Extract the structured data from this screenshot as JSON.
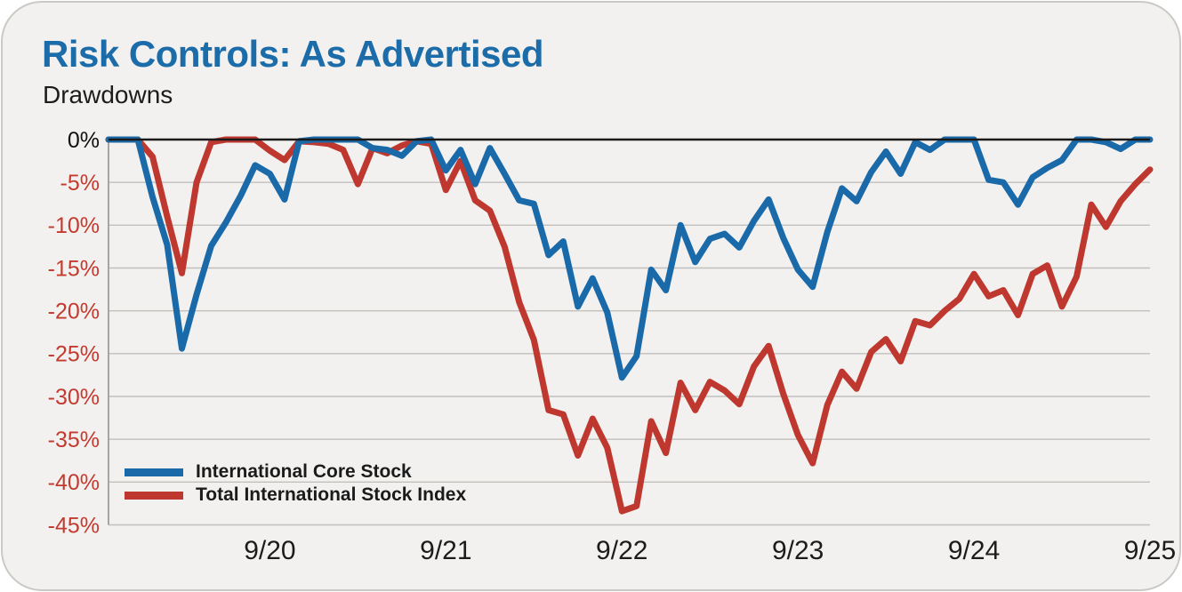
{
  "header": {
    "title": "Risk Controls: As Advertised",
    "subtitle": "Drawdowns"
  },
  "colors": {
    "card_bg": "#F2F1EF",
    "card_border": "#C9C9C5",
    "title_blue": "#1B6CA9",
    "text_dark": "#1C1C1C",
    "grid_gray": "#C0C0BD",
    "axis_left_gray": "#A5A5A2",
    "zero_line_black": "#1A1A1A",
    "y_label_negative_red": "#C33A2F",
    "y_label_zero_black": "#111111",
    "series_blue": "#1A69A9",
    "series_red": "#BE382F"
  },
  "chart_data": {
    "type": "line",
    "title": "Risk Controls: As Advertised",
    "subtitle": "Drawdowns",
    "grid": "horizontal",
    "legend_position": "inside-bottom-left",
    "ylim": [
      -45,
      0
    ],
    "y_unit": "%",
    "y_tick_labels": [
      "0%",
      "-5%",
      "-10%",
      "-15%",
      "-20%",
      "-25%",
      "-30%",
      "-35%",
      "-40%",
      "-45%"
    ],
    "y_tick_values": [
      0,
      -5,
      -10,
      -15,
      -20,
      -25,
      -30,
      -35,
      -40,
      -45
    ],
    "x_tick_labels": [
      "9/20",
      "9/21",
      "9/22",
      "9/23",
      "9/24",
      "9/25"
    ],
    "x_tick_indices": [
      11,
      23,
      35,
      47,
      59,
      71
    ],
    "n_points": 72,
    "x_period": "monthly",
    "series": [
      {
        "name": "International Core Stock",
        "color": "#1A69A9",
        "values": [
          0,
          0,
          0,
          -6.7,
          -12.3,
          -24.4,
          -18.1,
          -12.4,
          -9.7,
          -6.6,
          -3.0,
          -4.0,
          -7.0,
          -0.2,
          0,
          0,
          0,
          0,
          -1.0,
          -1.2,
          -1.9,
          -0.2,
          0,
          -3.6,
          -1.2,
          -5.2,
          -1.0,
          -4.0,
          -7.1,
          -7.5,
          -13.5,
          -11.9,
          -19.5,
          -16.2,
          -20.2,
          -27.8,
          -25.3,
          -15.2,
          -17.6,
          -10.0,
          -14.3,
          -11.6,
          -11.0,
          -12.6,
          -9.5,
          -7.0,
          -11.5,
          -15.2,
          -17.2,
          -10.8,
          -5.7,
          -7.2,
          -3.8,
          -1.4,
          -4.0,
          -0.3,
          -1.2,
          0,
          0,
          0,
          -4.7,
          -5.0,
          -7.6,
          -4.4,
          -3.3,
          -2.4,
          0,
          0,
          -0.3,
          -1.1,
          0,
          0
        ]
      },
      {
        "name": "Total International Stock Index",
        "color": "#BE382F",
        "values": [
          0,
          0,
          0,
          -2.0,
          -9.0,
          -15.6,
          -5.0,
          -0.3,
          0,
          0,
          0,
          -1.3,
          -2.4,
          -0.2,
          -0.3,
          -0.5,
          -1.2,
          -5.2,
          -1.0,
          -1.6,
          -0.7,
          -0.2,
          -0.5,
          -5.9,
          -2.5,
          -7.1,
          -8.3,
          -12.5,
          -19.0,
          -23.4,
          -31.6,
          -32.1,
          -36.9,
          -32.6,
          -36.0,
          -43.4,
          -42.8,
          -32.9,
          -36.6,
          -28.4,
          -31.6,
          -28.3,
          -29.3,
          -30.9,
          -26.5,
          -24.1,
          -29.7,
          -34.5,
          -37.8,
          -31.0,
          -27.1,
          -29.1,
          -24.8,
          -23.3,
          -25.9,
          -21.2,
          -21.7,
          -20.0,
          -18.6,
          -15.7,
          -18.3,
          -17.6,
          -20.5,
          -15.7,
          -14.7,
          -19.5,
          -16.0,
          -7.6,
          -10.2,
          -7.2,
          -5.2,
          -3.5
        ]
      }
    ]
  }
}
